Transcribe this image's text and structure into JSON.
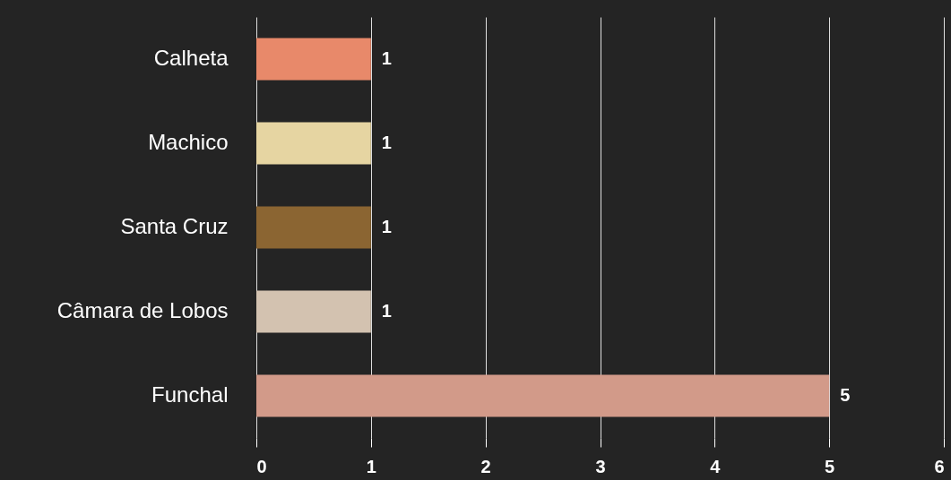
{
  "chart_data": {
    "type": "bar",
    "orientation": "horizontal",
    "categories": [
      "Calheta",
      "Machico",
      "Santa Cruz",
      "Câmara de Lobos",
      "Funchal"
    ],
    "values": [
      1,
      1,
      1,
      1,
      5
    ],
    "colors": [
      "#e8896a",
      "#e6d5a2",
      "#8b6532",
      "#d3c2b0",
      "#d29a89"
    ],
    "xlim": [
      0,
      6
    ],
    "xticks": [
      0,
      1,
      2,
      3,
      4,
      5,
      6
    ],
    "grid": "x",
    "data_labels": true
  }
}
